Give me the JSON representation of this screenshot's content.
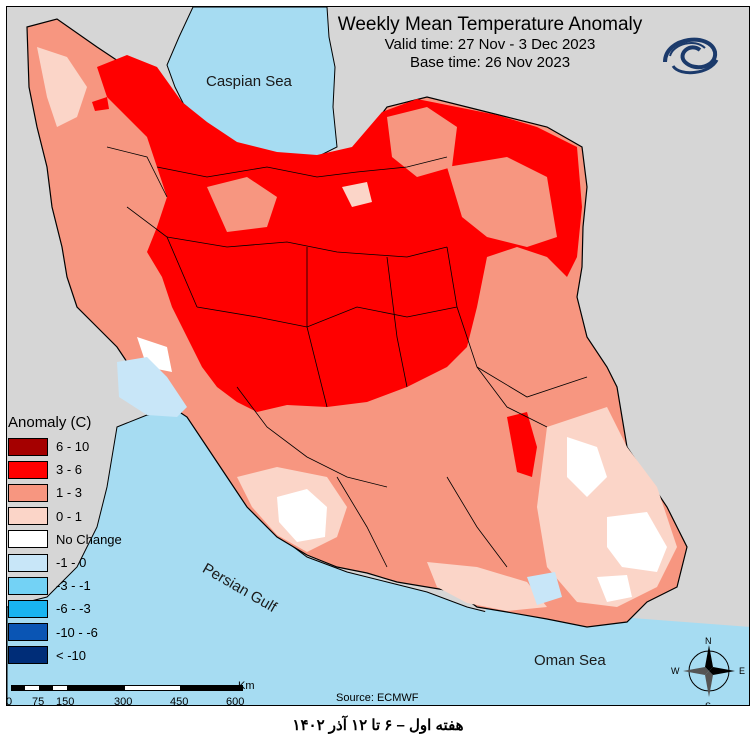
{
  "header": {
    "title": "Weekly Mean Temperature Anomaly",
    "valid_time": "Valid time: 27 Nov - 3 Dec 2023",
    "base_time": "Base time: 26 Nov 2023"
  },
  "legend": {
    "title": "Anomaly (C)",
    "items": [
      {
        "label": "6 - 10",
        "color": "#a50000"
      },
      {
        "label": "3 - 6",
        "color": "#ff0000"
      },
      {
        "label": "1 - 3",
        "color": "#f79680"
      },
      {
        "label": "0 - 1",
        "color": "#fbd5c8"
      },
      {
        "label": "No Change",
        "color": "#ffffff"
      },
      {
        "label": "-1 - 0",
        "color": "#c8e6f8"
      },
      {
        "label": "-3 - -1",
        "color": "#73d2f5"
      },
      {
        "label": "-6 - -3",
        "color": "#19b4f0"
      },
      {
        "label": "-10 - -6",
        "color": "#0a55b4"
      },
      {
        "label": "< -10",
        "color": "#002d78"
      }
    ]
  },
  "seas": {
    "caspian": "Caspian Sea",
    "persian_gulf": "Persian Gulf",
    "oman": "Oman Sea"
  },
  "scale": {
    "unit": "Km",
    "ticks": [
      "0",
      "75",
      "150",
      "300",
      "450",
      "600"
    ]
  },
  "compass": {
    "n": "N",
    "s": "S",
    "e": "E",
    "w": "W"
  },
  "source": "Source: ECMWF",
  "caption": "هفته اول – ۶ تا ۱۲ آذر ۱۴۰۲",
  "colors": {
    "sea": "#a6dcf2",
    "outside_land": "#d6d6d6",
    "border": "#000000"
  }
}
